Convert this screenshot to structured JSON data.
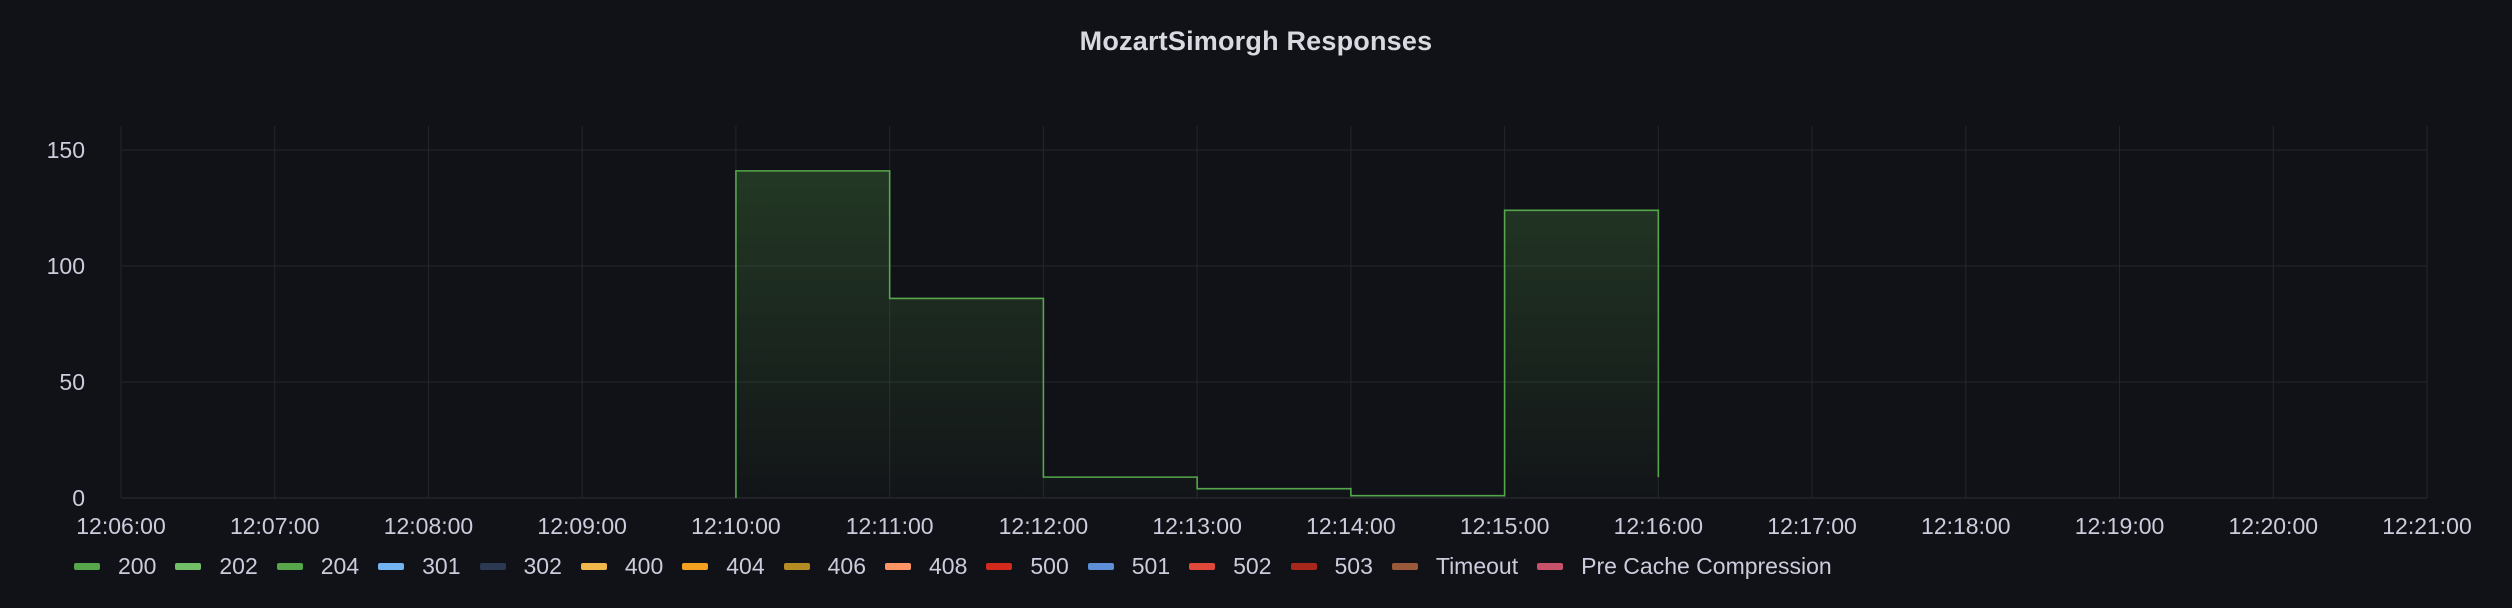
{
  "panel": {
    "title": "MozartSimorgh Responses"
  },
  "chart_data": {
    "type": "area",
    "title": "MozartSimorgh Responses",
    "xlabel": "",
    "ylabel": "",
    "x_ticks": [
      "12:06:00",
      "12:07:00",
      "12:08:00",
      "12:09:00",
      "12:10:00",
      "12:11:00",
      "12:12:00",
      "12:13:00",
      "12:14:00",
      "12:15:00",
      "12:16:00",
      "12:17:00",
      "12:18:00",
      "12:19:00",
      "12:20:00",
      "12:21:00"
    ],
    "y_ticks": [
      0,
      50,
      100,
      150
    ],
    "ylim": [
      0,
      150
    ],
    "xlim": [
      "12:06:00",
      "12:21:00"
    ],
    "grid": true,
    "step": true,
    "series": [
      {
        "name": "200",
        "color": "#56a64b",
        "points": [
          {
            "x": "12:10:00",
            "y": 141
          },
          {
            "x": "12:11:00",
            "y": 86
          },
          {
            "x": "12:12:00",
            "y": 9
          },
          {
            "x": "12:13:00",
            "y": 4
          },
          {
            "x": "12:14:00",
            "y": 1
          },
          {
            "x": "12:15:00",
            "y": 124
          },
          {
            "x": "12:16:00",
            "y": 9
          }
        ]
      }
    ],
    "legend": [
      {
        "name": "200",
        "color": "#56a64b"
      },
      {
        "name": "202",
        "color": "#73bf69"
      },
      {
        "name": "204",
        "color": "#56a64b"
      },
      {
        "name": "301",
        "color": "#73b3ef"
      },
      {
        "name": "302",
        "color": "#2b3a52"
      },
      {
        "name": "400",
        "color": "#f2b74a"
      },
      {
        "name": "404",
        "color": "#f4a020"
      },
      {
        "name": "406",
        "color": "#b58c24"
      },
      {
        "name": "408",
        "color": "#ff9466"
      },
      {
        "name": "500",
        "color": "#d42a1e"
      },
      {
        "name": "501",
        "color": "#5e8fd6"
      },
      {
        "name": "502",
        "color": "#e0483c"
      },
      {
        "name": "503",
        "color": "#a8271b"
      },
      {
        "name": "Timeout",
        "color": "#9a5a3a"
      },
      {
        "name": "Pre Cache Compression",
        "color": "#c9526b"
      }
    ],
    "legend_position": "bottom-left"
  }
}
